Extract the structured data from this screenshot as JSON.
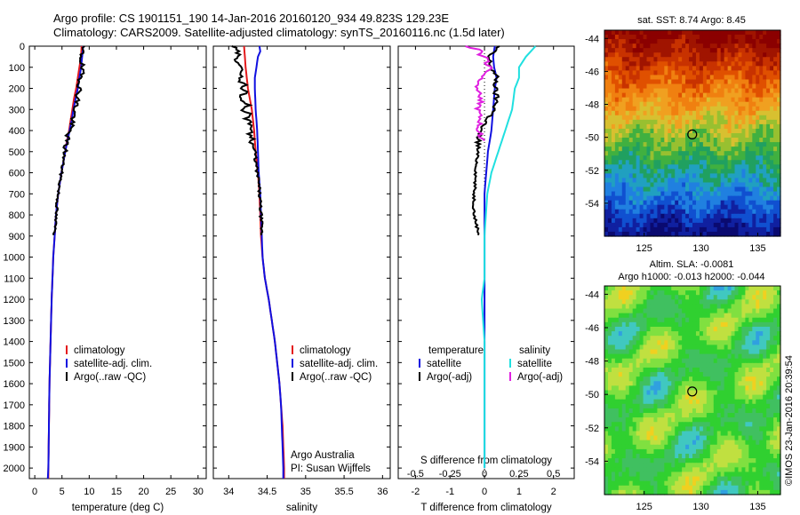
{
  "header": {
    "line1": "Argo profile: CS 1901151_190 14-Jan-2016 20160120_934 49.823S 129.23E",
    "line2": "Climatology: CARS2009. Satellite-adjusted climatology: synTS_20160116.nc (1.5d later)"
  },
  "footer": {
    "credit": "©IMOS 23-Jan-2016 20:39:54"
  },
  "colors": {
    "red": "#e41a1c",
    "blue": "#1010e0",
    "black": "#000000",
    "cyan": "#20e0e0",
    "magenta": "#e020e0"
  },
  "chart_data": [
    {
      "id": "temperature",
      "type": "line",
      "xlabel": "temperature (deg C)",
      "ylabel": "",
      "xlim": [
        -1,
        31.5
      ],
      "ylim": [
        2050,
        0
      ],
      "xticks": [
        0,
        5,
        10,
        15,
        20,
        25,
        30
      ],
      "yticks": [
        0,
        100,
        200,
        300,
        400,
        500,
        600,
        700,
        800,
        900,
        1000,
        1100,
        1200,
        1300,
        1400,
        1500,
        1600,
        1700,
        1800,
        1900,
        2000
      ],
      "legend_items": [
        "climatology",
        "satellite-adj. clim.",
        "Argo(..raw -QC)"
      ],
      "legend_position": "center",
      "series": [
        {
          "name": "climatology",
          "color": "red",
          "depth": [
            0,
            50,
            100,
            150,
            200,
            250,
            300,
            350,
            400,
            450,
            500,
            600,
            700,
            800,
            1000,
            1200,
            1400,
            1600,
            1800,
            2000,
            2050
          ],
          "values": [
            8.6,
            8.5,
            8.2,
            7.9,
            7.6,
            7.2,
            6.9,
            6.6,
            6.3,
            5.9,
            5.6,
            4.9,
            4.3,
            3.9,
            3.4,
            3.1,
            2.9,
            2.7,
            2.6,
            2.5,
            2.5
          ]
        },
        {
          "name": "satellite-adj. clim.",
          "color": "blue",
          "depth": [
            0,
            50,
            100,
            150,
            200,
            250,
            300,
            350,
            400,
            450,
            500,
            600,
            700,
            800,
            1000,
            1200,
            1400,
            1600,
            1800,
            2000,
            2050
          ],
          "values": [
            8.9,
            8.7,
            8.5,
            8.2,
            7.9,
            7.5,
            7.1,
            6.8,
            6.4,
            6.0,
            5.6,
            4.9,
            4.3,
            3.9,
            3.4,
            3.1,
            2.9,
            2.7,
            2.6,
            2.5,
            2.4
          ]
        },
        {
          "name": "Argo(..raw -QC)",
          "color": "black",
          "depth": [
            0,
            50,
            100,
            150,
            200,
            250,
            300,
            350,
            400,
            450,
            500,
            600,
            700,
            800,
            900
          ],
          "values": [
            8.7,
            8.6,
            8.6,
            8.5,
            8.2,
            7.9,
            7.4,
            7.0,
            6.4,
            5.8,
            5.5,
            4.9,
            4.3,
            3.9,
            3.6
          ]
        }
      ]
    },
    {
      "id": "salinity",
      "type": "line",
      "xlabel": "salinity",
      "xlim": [
        33.8,
        36.1
      ],
      "ylim": [
        2050,
        0
      ],
      "xticks": [
        34,
        34.5,
        35,
        35.5,
        36
      ],
      "legend_items": [
        "climatology",
        "satellite-adj. clim.",
        "Argo(..raw -QC)"
      ],
      "legend_position": "center",
      "annotation": [
        "Argo Australia",
        "PI: Susan Wijffels"
      ],
      "series": [
        {
          "name": "climatology",
          "color": "red",
          "depth": [
            0,
            100,
            200,
            300,
            400,
            500,
            600,
            700,
            800,
            900,
            1000,
            1100,
            1200,
            1300,
            1400,
            1500,
            1600,
            1700,
            1800,
            1900,
            2000,
            2050
          ],
          "values": [
            34.2,
            34.22,
            34.25,
            34.3,
            34.33,
            34.35,
            34.38,
            34.4,
            34.41,
            34.42,
            34.44,
            34.47,
            34.52,
            34.56,
            34.6,
            34.63,
            34.66,
            34.68,
            34.7,
            34.71,
            34.72,
            34.72
          ]
        },
        {
          "name": "satellite-adj. clim.",
          "color": "blue",
          "depth": [
            0,
            25,
            50,
            75,
            100,
            150,
            200,
            300,
            400,
            500,
            600,
            700,
            800,
            900,
            1000,
            1100,
            1200,
            1300,
            1400,
            1500,
            1600,
            1700,
            1800,
            1900,
            2000,
            2050
          ],
          "values": [
            34.4,
            34.41,
            34.38,
            34.37,
            34.36,
            34.34,
            34.34,
            34.35,
            34.37,
            34.38,
            34.39,
            34.41,
            34.42,
            34.43,
            34.44,
            34.47,
            34.52,
            34.56,
            34.6,
            34.63,
            34.66,
            34.68,
            34.69,
            34.7,
            34.71,
            34.71
          ]
        },
        {
          "name": "Argo(..raw -QC)",
          "color": "black",
          "depth": [
            0,
            20,
            40,
            60,
            80,
            100,
            120,
            140,
            160,
            180,
            200,
            220,
            240,
            260,
            280,
            300,
            320,
            340,
            360,
            380,
            400,
            420,
            440,
            460,
            500,
            550,
            600,
            650,
            700,
            750,
            800,
            900
          ],
          "values": [
            34.05,
            34.1,
            34.12,
            34.08,
            34.15,
            34.18,
            34.13,
            34.2,
            34.12,
            34.22,
            34.16,
            34.24,
            34.14,
            34.2,
            34.25,
            34.18,
            34.28,
            34.22,
            34.3,
            34.26,
            34.32,
            34.27,
            34.32,
            34.3,
            34.34,
            34.35,
            34.37,
            34.39,
            34.4,
            34.41,
            34.42,
            34.43
          ]
        }
      ]
    },
    {
      "id": "difference",
      "type": "line",
      "xlabel": "T difference from climatology",
      "xlabel_top": "S difference from climatology",
      "xlim": [
        -2.5,
        2.6
      ],
      "ylim": [
        2050,
        0
      ],
      "xticks": [
        -2,
        -1,
        0,
        1,
        2
      ],
      "xticks_s": [
        -0.5,
        -0.25,
        0,
        0.25,
        0.5
      ],
      "legend_headers": [
        "temperature",
        "salinity"
      ],
      "legend_items": [
        "satellite",
        "Argo(-adj)",
        "satellite",
        "Argo(-adj)"
      ],
      "legend_position": "center",
      "series": [
        {
          "name": "satellite",
          "color": "blue",
          "quantity": "temperature",
          "depth": [
            0,
            50,
            100,
            150,
            200,
            300,
            400,
            500,
            600,
            700,
            800,
            900,
            1000,
            1100,
            1200,
            1400,
            1600,
            1800,
            2000
          ],
          "values": [
            0.3,
            0.25,
            0.28,
            0.35,
            0.3,
            0.25,
            0.2,
            0.1,
            0.05,
            0.0,
            0.0,
            0.0,
            0.0,
            0.0,
            0.0,
            0.0,
            0.0,
            0.0,
            0.0
          ]
        },
        {
          "name": "Argo(-adj)",
          "color": "black",
          "quantity": "temperature",
          "depth": [
            0,
            50,
            100,
            150,
            200,
            250,
            300,
            400,
            500,
            600,
            700,
            800,
            900
          ],
          "values": [
            0.4,
            0.1,
            0.2,
            0.35,
            0.3,
            0.35,
            0.3,
            -0.15,
            -0.2,
            -0.25,
            -0.3,
            -0.3,
            -0.15
          ]
        },
        {
          "name": "satellite",
          "color": "cyan",
          "quantity": "salinity",
          "depth": [
            0,
            50,
            100,
            150,
            200,
            300,
            400,
            500,
            600,
            700,
            800,
            900,
            1000,
            1100,
            1200,
            1400,
            1600,
            1800,
            2000
          ],
          "values": [
            0.37,
            0.3,
            0.25,
            0.25,
            0.22,
            0.2,
            0.15,
            0.1,
            0.05,
            0.02,
            0.01,
            0.0,
            0.0,
            0.0,
            -0.02,
            0.0,
            0.0,
            0.0,
            0.0
          ]
        },
        {
          "name": "Argo(-adj)",
          "color": "magenta",
          "quantity": "salinity",
          "depth": [
            0,
            20,
            40,
            60,
            80,
            100,
            150,
            200,
            250,
            300,
            350,
            400,
            450
          ],
          "values": [
            -0.15,
            0.0,
            -0.05,
            0.05,
            0.0,
            0.05,
            -0.02,
            -0.05,
            -0.02,
            -0.05,
            -0.03,
            -0.05,
            0.0
          ]
        }
      ]
    },
    {
      "id": "sst-map",
      "type": "heatmap",
      "title": "sat. SST: 8.74  Argo: 8.45",
      "xlim": [
        121.5,
        137
      ],
      "ylim": [
        -56,
        -43.5
      ],
      "xticks": [
        125,
        130,
        135
      ],
      "yticks": [
        -44,
        -46,
        -48,
        -50,
        -52,
        -54
      ],
      "marker": {
        "lon": 129.23,
        "lat": -49.823
      }
    },
    {
      "id": "sla-map",
      "type": "heatmap",
      "title": "Altim. SLA: -0.0081",
      "subtitle": "Argo h1000: -0.013  h2000: -0.044",
      "xlim": [
        121.5,
        137
      ],
      "ylim": [
        -56,
        -43.5
      ],
      "xticks": [
        125,
        130,
        135
      ],
      "yticks": [
        -44,
        -46,
        -48,
        -50,
        -52,
        -54
      ],
      "marker": {
        "lon": 129.23,
        "lat": -49.823
      }
    }
  ]
}
